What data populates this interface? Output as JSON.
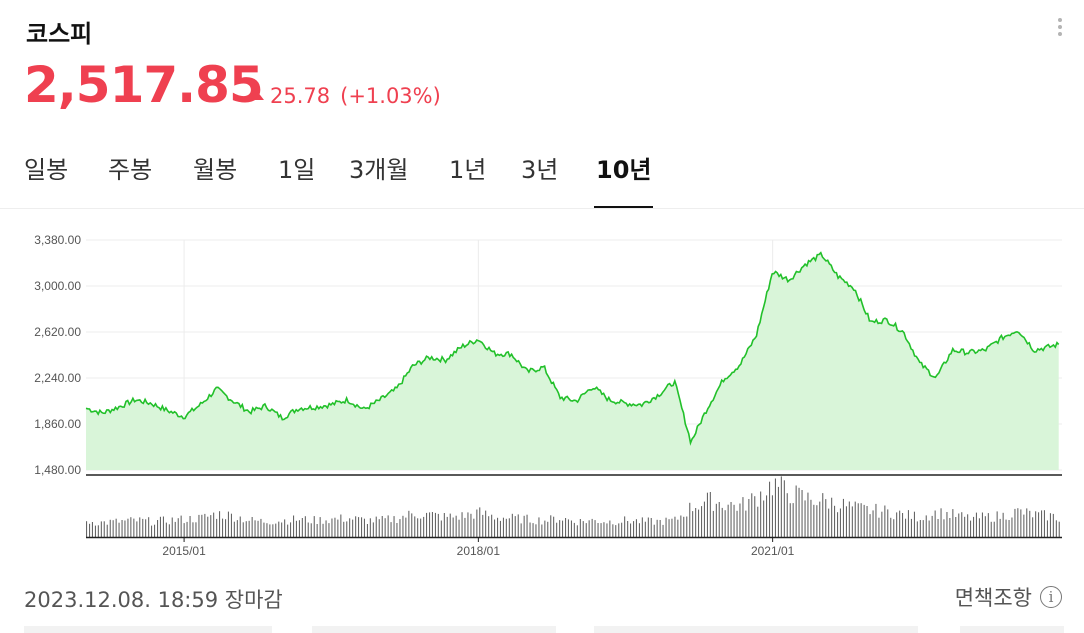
{
  "header": {
    "title": "코스피",
    "price": "2,517.85",
    "change": "25.78",
    "change_pct": "(+1.03%)",
    "up_color": "#ef4050"
  },
  "menu_icon": "more-vertical-icon",
  "tabs": [
    {
      "label": "일봉",
      "active": false
    },
    {
      "label": "주봉",
      "active": false
    },
    {
      "label": "월봉",
      "active": false
    },
    {
      "label": "1일",
      "active": false
    },
    {
      "label": "3개월",
      "active": false
    },
    {
      "label": "1년",
      "active": false
    },
    {
      "label": "3년",
      "active": false
    },
    {
      "label": "10년",
      "active": true
    }
  ],
  "footer": {
    "timestamp": "2023.12.08. 18:59 장마감",
    "disclaimer": "면책조항",
    "info_icon": "info-icon"
  },
  "chart_data": {
    "type": "area",
    "line_color": "#22c02a",
    "fill_color": "#d9f5d9",
    "volume_color": "#666666",
    "y_ticks": [
      "3,380.00",
      "3,000.00",
      "2,620.00",
      "2,240.00",
      "1,860.00",
      "1,480.00"
    ],
    "ylim": [
      1480,
      3380
    ],
    "x_ticks": [
      "2015/01",
      "2018/01",
      "2021/01"
    ],
    "x": [
      "2014/01",
      "2014/03",
      "2014/05",
      "2014/07",
      "2014/09",
      "2014/11",
      "2015/01",
      "2015/03",
      "2015/05",
      "2015/07",
      "2015/09",
      "2015/11",
      "2016/01",
      "2016/03",
      "2016/05",
      "2016/07",
      "2016/09",
      "2016/11",
      "2017/01",
      "2017/03",
      "2017/05",
      "2017/07",
      "2017/09",
      "2017/11",
      "2018/01",
      "2018/03",
      "2018/05",
      "2018/07",
      "2018/09",
      "2018/11",
      "2019/01",
      "2019/03",
      "2019/05",
      "2019/07",
      "2019/09",
      "2019/11",
      "2020/01",
      "2020/03",
      "2020/05",
      "2020/07",
      "2020/09",
      "2020/11",
      "2021/01",
      "2021/03",
      "2021/05",
      "2021/07",
      "2021/09",
      "2021/11",
      "2022/01",
      "2022/03",
      "2022/05",
      "2022/07",
      "2022/09",
      "2022/11",
      "2023/01",
      "2023/03",
      "2023/05",
      "2023/07",
      "2023/09",
      "2023/11",
      "2023/12"
    ],
    "values": [
      1990,
      1950,
      2000,
      2060,
      2030,
      1970,
      1920,
      2020,
      2150,
      2050,
      1960,
      2010,
      1910,
      1990,
      2000,
      2020,
      2060,
      1980,
      2060,
      2150,
      2340,
      2410,
      2390,
      2500,
      2560,
      2440,
      2440,
      2290,
      2330,
      2080,
      2050,
      2170,
      2060,
      2030,
      2020,
      2100,
      2210,
      1710,
      1990,
      2230,
      2350,
      2590,
      3120,
      3050,
      3180,
      3260,
      3080,
      2980,
      2700,
      2720,
      2620,
      2360,
      2240,
      2470,
      2450,
      2470,
      2570,
      2640,
      2470,
      2500,
      2517.85
    ],
    "volumes": [
      14,
      13,
      14,
      15,
      14,
      15,
      16,
      17,
      21,
      19,
      15,
      14,
      15,
      16,
      15,
      16,
      17,
      15,
      15,
      17,
      21,
      20,
      18,
      19,
      22,
      18,
      17,
      16,
      15,
      17,
      14,
      15,
      14,
      15,
      14,
      14,
      15,
      27,
      33,
      30,
      28,
      36,
      48,
      40,
      35,
      33,
      30,
      26,
      24,
      23,
      20,
      18,
      22,
      20,
      17,
      18,
      19,
      23,
      20,
      19,
      17
    ]
  }
}
